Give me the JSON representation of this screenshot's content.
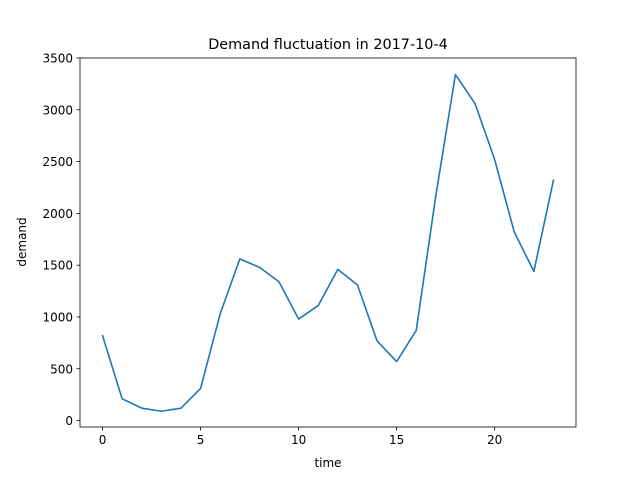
{
  "chart_data": {
    "type": "line",
    "title": "Demand fluctuation in 2017-10-4",
    "xlabel": "time",
    "ylabel": "demand",
    "xlim": [
      -1.15,
      24.15
    ],
    "ylim": [
      -62,
      3500
    ],
    "xticks": [
      0,
      5,
      10,
      15,
      20
    ],
    "yticks": [
      0,
      500,
      1000,
      1500,
      2000,
      2500,
      3000,
      3500
    ],
    "grid": false,
    "legend": "none",
    "series": [
      {
        "color": "#1f77b4",
        "x": [
          0,
          1,
          2,
          3,
          4,
          5,
          6,
          7,
          8,
          9,
          10,
          11,
          12,
          13,
          14,
          15,
          16,
          17,
          18,
          19,
          20,
          21,
          22,
          23
        ],
        "y": [
          820,
          210,
          120,
          90,
          120,
          310,
          1030,
          1560,
          1480,
          1340,
          980,
          1110,
          1460,
          1310,
          770,
          570,
          870,
          2170,
          3340,
          3060,
          2520,
          1820,
          1440,
          2320
        ]
      }
    ]
  }
}
